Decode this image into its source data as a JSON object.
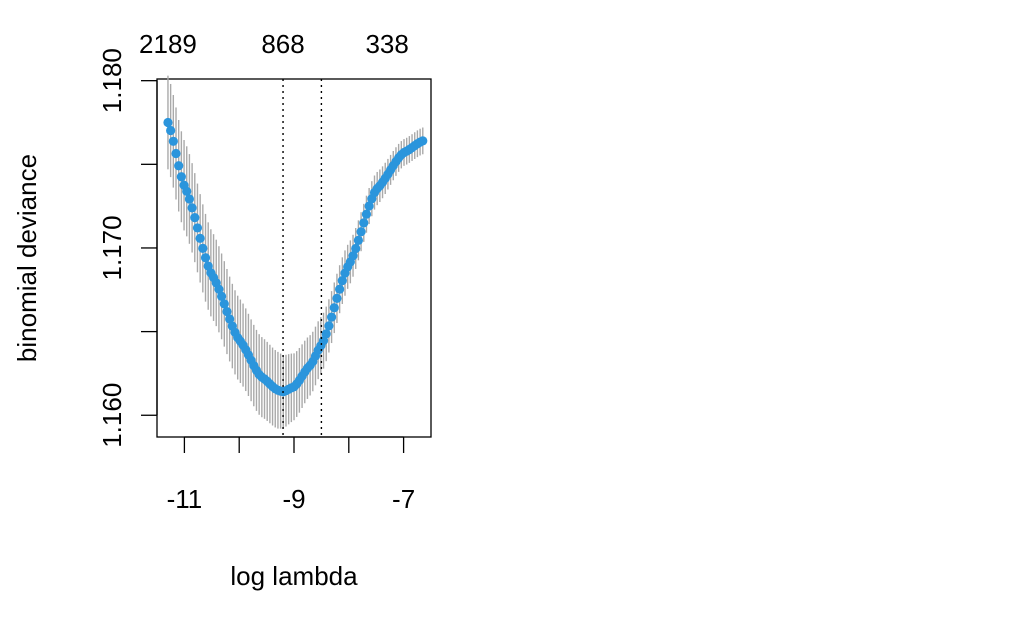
{
  "chart_data": {
    "type": "scatter",
    "title": "",
    "xlabel": "log lambda",
    "ylabel": "binomial deviance",
    "xlim": [
      -11.5,
      -6.5
    ],
    "ylim": [
      1.1587,
      1.1801
    ],
    "x_ticks": [
      -11,
      -9,
      -7
    ],
    "x_tick_labels": [
      "-11",
      "-9",
      "-7"
    ],
    "x_minor_ticks": [
      -10,
      -8
    ],
    "y_ticks": [
      1.16,
      1.165,
      1.17,
      1.175,
      1.18
    ],
    "y_tick_labels": [
      "1.160",
      "",
      "1.170",
      "",
      "1.180"
    ],
    "top_axis": {
      "positions": [
        -11.3,
        -9.2,
        -7.3
      ],
      "labels": [
        "2189",
        "868",
        "338"
      ]
    },
    "vlines": [
      -9.2,
      -8.5
    ],
    "grid": false,
    "legend": "none",
    "colors": {
      "points": "#2b95dc",
      "error_bars": "#a9a9a9"
    },
    "series": [
      {
        "points": [
          {
            "x": -11.3,
            "y": 1.1775,
            "se": 0.0028
          },
          {
            "x": -11.0,
            "y": 1.1737,
            "se": 0.0027
          },
          {
            "x": -10.5,
            "y": 1.1684,
            "se": 0.0026
          },
          {
            "x": -10.0,
            "y": 1.1645,
            "se": 0.0025
          },
          {
            "x": -9.6,
            "y": 1.1623,
            "se": 0.0024
          },
          {
            "x": -9.3,
            "y": 1.1615,
            "se": 0.0023
          },
          {
            "x": -9.2,
            "y": 1.1614,
            "se": 0.0022
          },
          {
            "x": -9.0,
            "y": 1.1617,
            "se": 0.002
          },
          {
            "x": -8.7,
            "y": 1.163,
            "se": 0.0018
          },
          {
            "x": -8.5,
            "y": 1.1642,
            "se": 0.0017
          },
          {
            "x": -8.0,
            "y": 1.169,
            "se": 0.0013
          },
          {
            "x": -7.5,
            "y": 1.1735,
            "se": 0.001
          },
          {
            "x": -7.0,
            "y": 1.1757,
            "se": 0.0008
          },
          {
            "x": -6.65,
            "y": 1.1764,
            "se": 0.0008
          }
        ]
      }
    ]
  }
}
